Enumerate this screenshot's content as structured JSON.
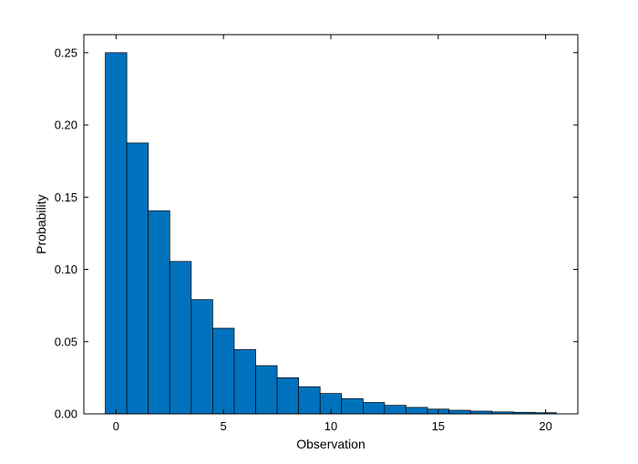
{
  "chart_data": {
    "type": "bar",
    "title": "",
    "xlabel": "Observation",
    "ylabel": "Probability",
    "x": [
      0,
      1,
      2,
      3,
      4,
      5,
      6,
      7,
      8,
      9,
      10,
      11,
      12,
      13,
      14,
      15,
      16,
      17,
      18,
      19,
      20
    ],
    "values": [
      0.25,
      0.1875,
      0.1406,
      0.1055,
      0.0791,
      0.0593,
      0.0445,
      0.0334,
      0.025,
      0.0188,
      0.0141,
      0.0106,
      0.0079,
      0.0059,
      0.0045,
      0.0033,
      0.0025,
      0.0019,
      0.0014,
      0.0011,
      0.0008
    ],
    "xlim": [
      -1.5,
      21.5
    ],
    "ylim": [
      0,
      0.2625
    ],
    "xticks": [
      0,
      5,
      10,
      15,
      20
    ],
    "xtick_labels": [
      "0",
      "5",
      "10",
      "15",
      "20"
    ],
    "yticks": [
      0,
      0.05,
      0.1,
      0.15,
      0.2,
      0.25
    ],
    "ytick_labels": [
      "0.00",
      "0.05",
      "0.10",
      "0.15",
      "0.20",
      "0.25"
    ],
    "grid": false,
    "bar_color": "#0072BD",
    "bar_edge_color": "#000000"
  }
}
